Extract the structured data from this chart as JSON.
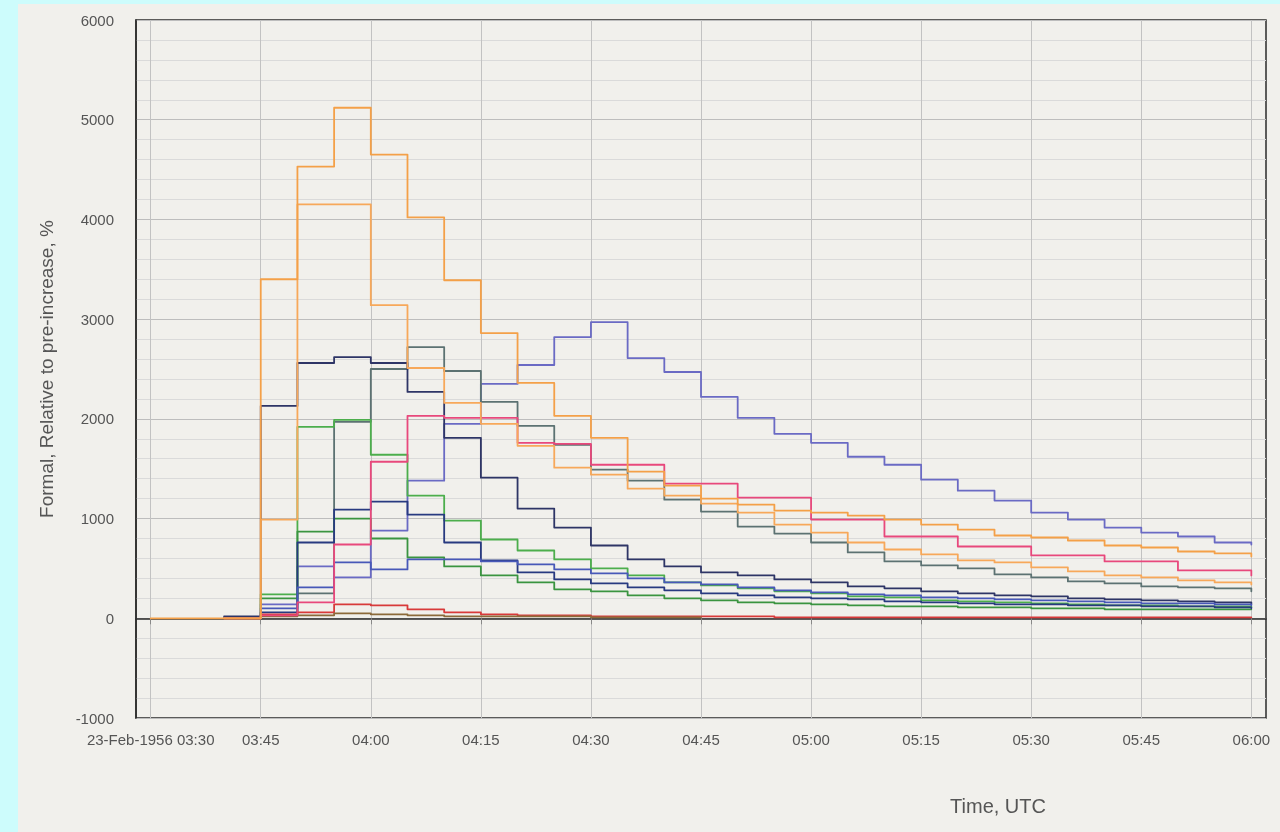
{
  "chart_data": {
    "type": "step",
    "xlabel": "Time, UTC",
    "ylabel": "Formal, Relative to pre-increase, %",
    "x": [
      "1956-02-23T03:30",
      "1956-02-23T03:35",
      "1956-02-23T03:40",
      "1956-02-23T03:45",
      "1956-02-23T03:50",
      "1956-02-23T03:55",
      "1956-02-23T04:00",
      "1956-02-23T04:05",
      "1956-02-23T04:10",
      "1956-02-23T04:15",
      "1956-02-23T04:20",
      "1956-02-23T04:25",
      "1956-02-23T04:30",
      "1956-02-23T04:35",
      "1956-02-23T04:40",
      "1956-02-23T04:45",
      "1956-02-23T04:50",
      "1956-02-23T04:55",
      "1956-02-23T05:00",
      "1956-02-23T05:05",
      "1956-02-23T05:10",
      "1956-02-23T05:15",
      "1956-02-23T05:20",
      "1956-02-23T05:25",
      "1956-02-23T05:30",
      "1956-02-23T05:35",
      "1956-02-23T05:40",
      "1956-02-23T05:45",
      "1956-02-23T05:50",
      "1956-02-23T05:55",
      "1956-02-23T06:00"
    ],
    "xlim": [
      "1956-02-23T03:28",
      "1956-02-23T06:02"
    ],
    "xticks": [
      {
        "value": "1956-02-23T03:30",
        "label": "23-Feb-1956 03:30"
      },
      {
        "value": "1956-02-23T03:45",
        "label": "03:45"
      },
      {
        "value": "1956-02-23T04:00",
        "label": "04:00"
      },
      {
        "value": "1956-02-23T04:15",
        "label": "04:15"
      },
      {
        "value": "1956-02-23T04:30",
        "label": "04:30"
      },
      {
        "value": "1956-02-23T04:45",
        "label": "04:45"
      },
      {
        "value": "1956-02-23T05:00",
        "label": "05:00"
      },
      {
        "value": "1956-02-23T05:15",
        "label": "05:15"
      },
      {
        "value": "1956-02-23T05:30",
        "label": "05:30"
      },
      {
        "value": "1956-02-23T05:45",
        "label": "05:45"
      },
      {
        "value": "1956-02-23T06:00",
        "label": "06:00"
      }
    ],
    "ylim": [
      -1000,
      6000
    ],
    "yticks": [
      -1000,
      0,
      1000,
      2000,
      3000,
      4000,
      5000,
      6000
    ],
    "grid": true,
    "marker": "none",
    "series": [
      {
        "color": "#6a6ac4",
        "values": [
          null,
          null,
          0,
          140,
          520,
          410,
          880,
          1380,
          1950,
          2350,
          2540,
          2820,
          2970,
          2610,
          2470,
          2220,
          2010,
          1850,
          1760,
          1620,
          1540,
          1390,
          1280,
          1180,
          1060,
          990,
          910,
          860,
          820,
          760,
          740
        ]
      },
      {
        "color": "#5c7272",
        "values": [
          null,
          null,
          0,
          30,
          250,
          1970,
          2500,
          2720,
          2480,
          2170,
          1930,
          1740,
          1490,
          1380,
          1190,
          1070,
          920,
          850,
          760,
          660,
          570,
          530,
          500,
          440,
          410,
          370,
          350,
          320,
          310,
          300,
          270
        ]
      },
      {
        "color": "#2e3566",
        "values": [
          null,
          null,
          20,
          2130,
          2560,
          2620,
          2560,
          2270,
          1810,
          1410,
          1100,
          910,
          730,
          590,
          520,
          460,
          430,
          390,
          360,
          320,
          300,
          270,
          250,
          230,
          220,
          200,
          190,
          180,
          170,
          160,
          140
        ]
      },
      {
        "color": "#4cae4c",
        "values": [
          null,
          null,
          0,
          240,
          1920,
          1990,
          1640,
          1230,
          980,
          790,
          680,
          590,
          500,
          430,
          360,
          330,
          300,
          270,
          250,
          220,
          210,
          180,
          170,
          160,
          150,
          140,
          130,
          130,
          120,
          120,
          110
        ]
      },
      {
        "color": "#3a9440",
        "values": [
          null,
          null,
          0,
          200,
          870,
          1000,
          800,
          610,
          520,
          430,
          360,
          290,
          270,
          230,
          200,
          180,
          160,
          150,
          140,
          130,
          120,
          120,
          110,
          110,
          100,
          100,
          90,
          90,
          90,
          90,
          90
        ]
      },
      {
        "color": "#283a80",
        "values": [
          null,
          null,
          0,
          60,
          760,
          1090,
          1170,
          1040,
          760,
          580,
          460,
          390,
          350,
          310,
          280,
          250,
          230,
          210,
          200,
          190,
          170,
          160,
          150,
          140,
          140,
          130,
          130,
          120,
          120,
          110,
          100
        ]
      },
      {
        "color": "#4858b8",
        "values": [
          null,
          null,
          0,
          100,
          310,
          560,
          490,
          590,
          590,
          570,
          540,
          490,
          450,
          400,
          360,
          340,
          310,
          280,
          260,
          240,
          230,
          210,
          200,
          190,
          180,
          170,
          160,
          150,
          150,
          140,
          130
        ]
      },
      {
        "color": "#d83a3a",
        "values": [
          null,
          null,
          0,
          40,
          60,
          140,
          130,
          90,
          60,
          40,
          30,
          30,
          20,
          20,
          20,
          20,
          20,
          10,
          10,
          10,
          10,
          10,
          10,
          10,
          10,
          10,
          10,
          10,
          10,
          10,
          10
        ]
      },
      {
        "color": "#8c6a3a",
        "values": [
          null,
          null,
          0,
          20,
          30,
          50,
          40,
          30,
          20,
          20,
          20,
          20,
          10,
          10,
          10,
          10,
          null,
          null,
          null,
          null,
          null,
          null,
          null,
          null,
          null,
          null,
          null,
          null,
          null,
          null,
          null
        ]
      },
      {
        "color": "#e8487c",
        "values": [
          null,
          null,
          0,
          30,
          160,
          740,
          1570,
          2030,
          2010,
          2010,
          1760,
          1750,
          1540,
          1540,
          1350,
          1350,
          1210,
          1210,
          990,
          990,
          820,
          820,
          720,
          720,
          630,
          630,
          570,
          570,
          480,
          480,
          430
        ]
      },
      {
        "color": "#f7a85a",
        "values": [
          null,
          null,
          0,
          990,
          4150,
          4150,
          3140,
          2510,
          2160,
          1950,
          1730,
          1510,
          1440,
          1300,
          1230,
          1150,
          1060,
          940,
          860,
          760,
          690,
          640,
          580,
          560,
          510,
          470,
          430,
          410,
          380,
          360,
          340
        ]
      },
      {
        "color": "#f4a048",
        "values": [
          0,
          0,
          0,
          3400,
          4530,
          5120,
          4650,
          4020,
          3390,
          2860,
          2360,
          2030,
          1810,
          1470,
          1330,
          1200,
          1140,
          1080,
          1060,
          1030,
          990,
          940,
          890,
          830,
          810,
          780,
          730,
          710,
          670,
          650,
          620
        ]
      }
    ]
  }
}
